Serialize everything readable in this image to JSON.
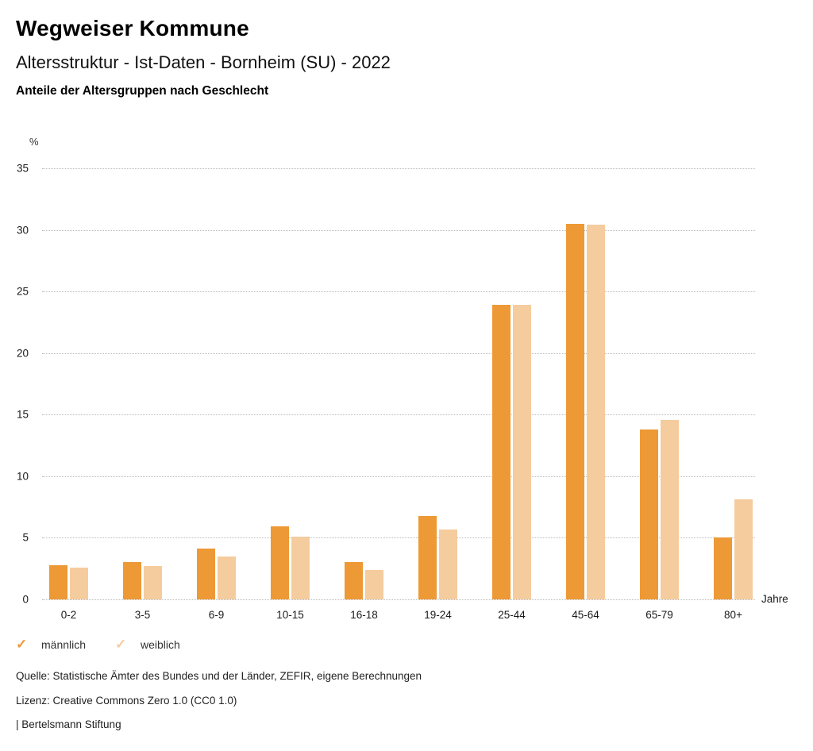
{
  "header": {
    "title": "Wegweiser Kommune",
    "subtitle": "Altersstruktur - Ist-Daten - Bornheim (SU) - 2022",
    "subsubtitle": "Anteile der Altersgruppen nach Geschlecht"
  },
  "chart_data": {
    "type": "bar",
    "title": "Anteile der Altersgruppen nach Geschlecht",
    "ylabel": "%",
    "xlabel": "Jahre",
    "ylim": [
      0,
      35
    ],
    "ytick_step": 5,
    "yticks": [
      0,
      5,
      10,
      15,
      20,
      25,
      30,
      35
    ],
    "grid": "horizontal-dotted",
    "legend_position": "bottom-left",
    "categories": [
      "0-2",
      "3-5",
      "6-9",
      "10-15",
      "16-18",
      "19-24",
      "25-44",
      "45-64",
      "65-79",
      "80+"
    ],
    "series": [
      {
        "name": "männlich",
        "color": "#ED9936",
        "values": [
          2.8,
          3.0,
          4.1,
          5.9,
          3.0,
          6.8,
          23.9,
          30.5,
          13.8,
          5.0
        ]
      },
      {
        "name": "weiblich",
        "color": "#F5CC9E",
        "values": [
          2.6,
          2.7,
          3.5,
          5.1,
          2.4,
          5.7,
          23.9,
          30.4,
          14.6,
          8.1
        ]
      }
    ]
  },
  "legend": {
    "check_icon": "✓",
    "items": [
      {
        "label": "männlich",
        "color": "#ED9936"
      },
      {
        "label": "weiblich",
        "color": "#F5CC9E"
      }
    ]
  },
  "footer": {
    "source": "Quelle: Statistische Ämter des Bundes und der Länder, ZEFIR, eigene Berechnungen",
    "license": "Lizenz: Creative Commons Zero 1.0 (CC0 1.0)",
    "attribution": "| Bertelsmann Stiftung"
  }
}
